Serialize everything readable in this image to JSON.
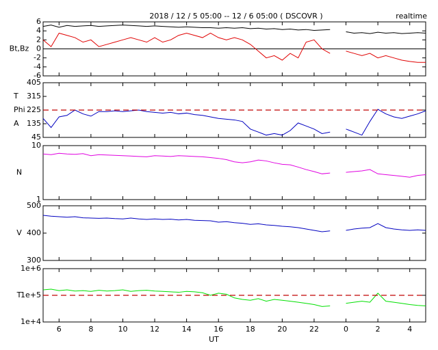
{
  "chart_data": [
    {
      "type": "line",
      "title": "2018 / 12 / 5   05:00 -- 12 / 6   05:00 ( DSCOVR )",
      "subtitle": "realtime",
      "ylabel": "Bt,Bz",
      "x": [
        5,
        5.5,
        6,
        6.5,
        7,
        7.5,
        8,
        8.5,
        9,
        9.5,
        10,
        10.5,
        11,
        11.5,
        12,
        12.5,
        13,
        13.5,
        14,
        14.5,
        15,
        15.5,
        16,
        16.5,
        17,
        17.5,
        18,
        18.5,
        19,
        19.5,
        20,
        20.5,
        21,
        21.5,
        22,
        22.5,
        23,
        23.5,
        24,
        24.5,
        25,
        25.5,
        26,
        26.5,
        27,
        27.5,
        28,
        28.5,
        29
      ],
      "xlim": [
        5,
        29
      ],
      "ylim": [
        -6,
        6
      ],
      "yticks": [
        -6,
        -4,
        -2,
        0,
        2,
        4,
        6
      ],
      "series": [
        {
          "color": "#000000",
          "values": [
            5.0,
            5.3,
            4.8,
            5.2,
            5.0,
            5.1,
            5.2,
            5.0,
            5.1,
            5.2,
            5.3,
            5.2,
            5.1,
            5.0,
            5.1,
            5.0,
            4.9,
            4.8,
            4.9,
            4.8,
            4.7,
            4.7,
            4.6,
            4.7,
            4.6,
            4.7,
            4.5,
            4.6,
            4.4,
            4.5,
            4.3,
            4.4,
            4.2,
            4.3,
            4.1,
            4.2,
            4.3,
            null,
            3.8,
            3.5,
            3.6,
            3.4,
            3.7,
            3.5,
            3.6,
            3.4,
            3.5,
            3.6,
            3.5
          ]
        },
        {
          "color": "#e00000",
          "values": [
            2.0,
            0.5,
            3.5,
            3.0,
            2.5,
            1.5,
            2.0,
            0.5,
            1.0,
            1.5,
            2.0,
            2.5,
            2.0,
            1.5,
            2.5,
            1.5,
            2.0,
            3.0,
            3.5,
            3.0,
            2.5,
            3.5,
            2.5,
            2.0,
            2.5,
            2.0,
            1.0,
            -0.5,
            -2.0,
            -1.5,
            -2.5,
            -1.0,
            -2.0,
            1.5,
            2.0,
            0.0,
            -1.0,
            null,
            -0.5,
            -1.0,
            -1.5,
            -1.0,
            -2.0,
            -1.5,
            -2.0,
            -2.5,
            -2.8,
            -3.0,
            -3.0
          ]
        }
      ]
    },
    {
      "type": "line",
      "ylabel": [
        "T",
        "Phi",
        "A"
      ],
      "x": [
        5,
        5.5,
        6,
        6.5,
        7,
        7.5,
        8,
        8.5,
        9,
        9.5,
        10,
        10.5,
        11,
        11.5,
        12,
        12.5,
        13,
        13.5,
        14,
        14.5,
        15,
        15.5,
        16,
        16.5,
        17,
        17.5,
        18,
        18.5,
        19,
        19.5,
        20,
        20.5,
        21,
        21.5,
        22,
        22.5,
        23,
        23.5,
        24,
        24.5,
        25,
        25.5,
        26,
        26.5,
        27,
        27.5,
        28,
        28.5,
        29
      ],
      "xlim": [
        5,
        29
      ],
      "ylim": [
        45,
        405
      ],
      "yticks": [
        45,
        135,
        225,
        315,
        405
      ],
      "reference_line": {
        "value": 225,
        "color": "#c00000"
      },
      "series": [
        {
          "color": "#0000c0",
          "values": [
            170,
            110,
            180,
            190,
            225,
            200,
            185,
            215,
            215,
            220,
            215,
            220,
            225,
            215,
            210,
            205,
            210,
            200,
            205,
            195,
            190,
            180,
            170,
            165,
            160,
            150,
            100,
            80,
            60,
            70,
            60,
            90,
            140,
            120,
            100,
            70,
            80,
            null,
            100,
            80,
            60,
            150,
            230,
            200,
            180,
            170,
            185,
            200,
            220
          ]
        }
      ]
    },
    {
      "type": "line",
      "ylabel": "N",
      "log_scale": true,
      "x": [
        5,
        5.5,
        6,
        6.5,
        7,
        7.5,
        8,
        8.5,
        9,
        9.5,
        10,
        10.5,
        11,
        11.5,
        12,
        12.5,
        13,
        13.5,
        14,
        14.5,
        15,
        15.5,
        16,
        16.5,
        17,
        17.5,
        18,
        18.5,
        19,
        19.5,
        20,
        20.5,
        21,
        21.5,
        22,
        22.5,
        23,
        23.5,
        24,
        24.5,
        25,
        25.5,
        26,
        26.5,
        27,
        27.5,
        28,
        28.5,
        29
      ],
      "xlim": [
        5,
        29
      ],
      "ylim": [
        1,
        10
      ],
      "yticks": [
        1,
        10
      ],
      "series": [
        {
          "color": "#e000e0",
          "values": [
            7.0,
            6.8,
            7.2,
            7.0,
            6.9,
            7.1,
            6.5,
            6.8,
            6.7,
            6.6,
            6.5,
            6.4,
            6.3,
            6.2,
            6.5,
            6.4,
            6.3,
            6.5,
            6.4,
            6.3,
            6.2,
            6.0,
            5.8,
            5.5,
            5.0,
            4.8,
            5.0,
            5.4,
            5.2,
            4.8,
            4.5,
            4.4,
            4.0,
            3.6,
            3.3,
            3.0,
            3.1,
            null,
            3.2,
            3.3,
            3.4,
            3.6,
            3.0,
            2.9,
            2.8,
            2.7,
            2.6,
            2.8,
            2.9
          ]
        }
      ]
    },
    {
      "type": "line",
      "ylabel": "V",
      "x": [
        5,
        5.5,
        6,
        6.5,
        7,
        7.5,
        8,
        8.5,
        9,
        9.5,
        10,
        10.5,
        11,
        11.5,
        12,
        12.5,
        13,
        13.5,
        14,
        14.5,
        15,
        15.5,
        16,
        16.5,
        17,
        17.5,
        18,
        18.5,
        19,
        19.5,
        20,
        20.5,
        21,
        21.5,
        22,
        22.5,
        23,
        23.5,
        24,
        24.5,
        25,
        25.5,
        26,
        26.5,
        27,
        27.5,
        28,
        28.5,
        29
      ],
      "xlim": [
        5,
        29
      ],
      "ylim": [
        300,
        500
      ],
      "yticks": [
        300,
        400,
        500
      ],
      "series": [
        {
          "color": "#0000c0",
          "values": [
            465,
            462,
            460,
            458,
            460,
            456,
            455,
            454,
            455,
            453,
            452,
            455,
            452,
            450,
            452,
            450,
            451,
            448,
            450,
            447,
            446,
            445,
            440,
            442,
            438,
            436,
            432,
            434,
            430,
            428,
            425,
            423,
            420,
            415,
            410,
            405,
            408,
            null,
            410,
            415,
            418,
            420,
            435,
            420,
            415,
            412,
            410,
            412,
            410
          ]
        }
      ]
    },
    {
      "type": "line",
      "ylabel": "T",
      "log_scale": true,
      "xlabel": "UT",
      "x": [
        5,
        5.5,
        6,
        6.5,
        7,
        7.5,
        8,
        8.5,
        9,
        9.5,
        10,
        10.5,
        11,
        11.5,
        12,
        12.5,
        13,
        13.5,
        14,
        14.5,
        15,
        15.5,
        16,
        16.5,
        17,
        17.5,
        18,
        18.5,
        19,
        19.5,
        20,
        20.5,
        21,
        21.5,
        22,
        22.5,
        23,
        23.5,
        24,
        24.5,
        25,
        25.5,
        26,
        26.5,
        27,
        27.5,
        28,
        28.5,
        29
      ],
      "xlim": [
        5,
        29
      ],
      "xticks": [
        6,
        8,
        10,
        12,
        14,
        16,
        18,
        20,
        22,
        {
          "value": 24,
          "label": "0"
        },
        {
          "value": 26,
          "label": "2"
        },
        {
          "value": 28,
          "label": "4"
        }
      ],
      "ylim": [
        10000,
        1000000
      ],
      "yticks": [
        {
          "value": 10000,
          "label": "1e+4"
        },
        {
          "value": 100000,
          "label": "1e+5"
        },
        {
          "value": 1000000,
          "label": "1e+6"
        }
      ],
      "reference_line": {
        "value": 100000,
        "color": "#c00000"
      },
      "series": [
        {
          "color": "#00e000",
          "values": [
            160000,
            170000,
            150000,
            160000,
            145000,
            150000,
            140000,
            155000,
            145000,
            150000,
            160000,
            140000,
            150000,
            155000,
            145000,
            140000,
            135000,
            130000,
            140000,
            135000,
            125000,
            100000,
            120000,
            110000,
            80000,
            70000,
            65000,
            75000,
            60000,
            70000,
            65000,
            60000,
            55000,
            50000,
            45000,
            38000,
            40000,
            null,
            50000,
            55000,
            60000,
            55000,
            120000,
            60000,
            55000,
            50000,
            45000,
            42000,
            40000
          ]
        }
      ]
    }
  ]
}
